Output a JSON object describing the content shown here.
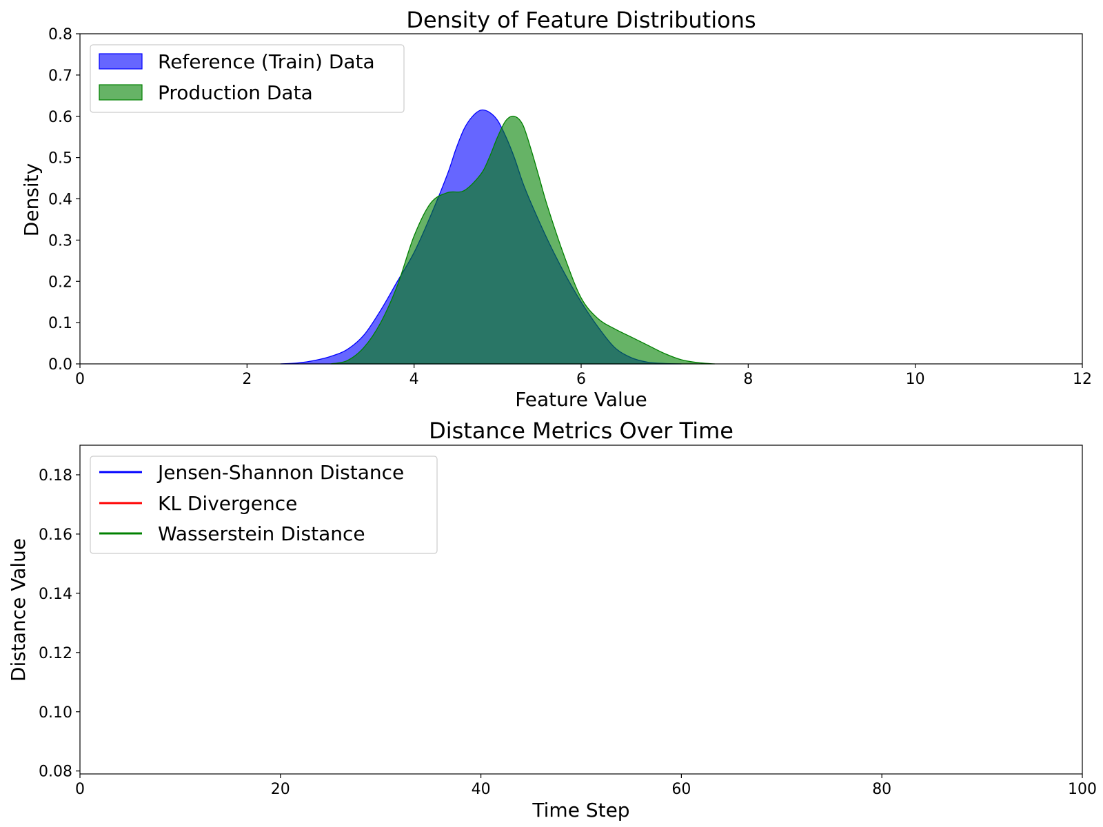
{
  "chart_data": [
    {
      "type": "area",
      "title": "Density of Feature Distributions",
      "xlabel": "Feature Value",
      "ylabel": "Density",
      "xlim": [
        0,
        12
      ],
      "ylim": [
        0,
        0.8
      ],
      "xticks": [
        "0",
        "2",
        "4",
        "6",
        "8",
        "10",
        "12"
      ],
      "yticks": [
        "0.0",
        "0.1",
        "0.2",
        "0.3",
        "0.4",
        "0.5",
        "0.6",
        "0.7",
        "0.8"
      ],
      "grid": false,
      "legend_position": "top-left",
      "series": [
        {
          "name": "Reference (Train) Data",
          "color": "#0000ff",
          "x": [
            2.4,
            2.6,
            2.8,
            3.0,
            3.2,
            3.4,
            3.6,
            3.8,
            4.0,
            4.2,
            4.4,
            4.5,
            4.6,
            4.7,
            4.8,
            4.9,
            5.0,
            5.1,
            5.2,
            5.3,
            5.4,
            5.6,
            5.8,
            6.0,
            6.2,
            6.4,
            6.6,
            6.8,
            7.0,
            7.2
          ],
          "values": [
            0.0,
            0.002,
            0.008,
            0.018,
            0.035,
            0.07,
            0.13,
            0.2,
            0.27,
            0.36,
            0.46,
            0.52,
            0.57,
            0.6,
            0.615,
            0.61,
            0.59,
            0.55,
            0.5,
            0.44,
            0.39,
            0.3,
            0.22,
            0.15,
            0.09,
            0.04,
            0.015,
            0.004,
            0.001,
            0.0
          ]
        },
        {
          "name": "Production Data",
          "color": "#008000",
          "x": [
            3.0,
            3.2,
            3.4,
            3.6,
            3.8,
            4.0,
            4.2,
            4.4,
            4.6,
            4.8,
            4.9,
            5.0,
            5.1,
            5.2,
            5.3,
            5.4,
            5.5,
            5.6,
            5.8,
            6.0,
            6.2,
            6.4,
            6.6,
            6.8,
            7.0,
            7.2,
            7.4,
            7.6
          ],
          "values": [
            0.0,
            0.008,
            0.04,
            0.1,
            0.19,
            0.31,
            0.39,
            0.415,
            0.42,
            0.46,
            0.5,
            0.55,
            0.59,
            0.6,
            0.58,
            0.52,
            0.45,
            0.38,
            0.26,
            0.16,
            0.11,
            0.085,
            0.065,
            0.045,
            0.025,
            0.01,
            0.003,
            0.0
          ]
        }
      ]
    },
    {
      "type": "line",
      "title": "Distance Metrics Over Time",
      "xlabel": "Time Step",
      "ylabel": "Distance Value",
      "xlim": [
        0,
        100
      ],
      "ylim": [
        0.079,
        0.19
      ],
      "xticks": [
        "0",
        "20",
        "40",
        "60",
        "80",
        "100"
      ],
      "yticks": [
        "0.08",
        "0.10",
        "0.12",
        "0.14",
        "0.16",
        "0.18"
      ],
      "grid": false,
      "legend_position": "top-left",
      "series": [
        {
          "name": "Jensen-Shannon Distance",
          "color": "#0000ff",
          "values": []
        },
        {
          "name": "KL Divergence",
          "color": "#ff0000",
          "values": []
        },
        {
          "name": "Wasserstein Distance",
          "color": "#008000",
          "values": []
        }
      ]
    }
  ]
}
